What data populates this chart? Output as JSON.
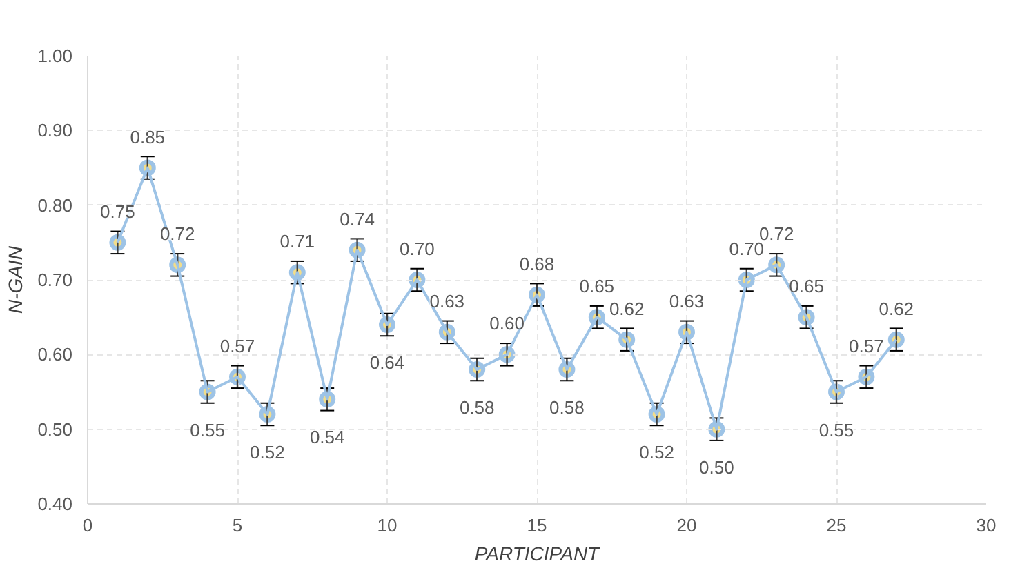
{
  "chart_data": {
    "type": "line",
    "xlabel": "PARTICIPANT",
    "ylabel": "N-GAIN",
    "x": [
      1,
      2,
      3,
      4,
      5,
      6,
      7,
      8,
      9,
      10,
      11,
      12,
      13,
      14,
      15,
      16,
      17,
      18,
      19,
      20,
      21,
      22,
      23,
      24,
      25,
      26,
      27
    ],
    "series": [
      {
        "color": "#9dc3e6",
        "values": [
          0.75,
          0.85,
          0.72,
          0.55,
          0.57,
          0.52,
          0.71,
          0.54,
          0.74,
          0.64,
          0.7,
          0.63,
          0.58,
          0.6,
          0.68,
          0.58,
          0.65,
          0.62,
          0.52,
          0.63,
          0.5,
          0.7,
          0.72,
          0.65,
          0.55,
          0.57,
          0.62
        ],
        "value_labels": [
          "0.75",
          "0.85",
          "0.72",
          "0.55",
          "0.57",
          "0.52",
          "0.71",
          "0.54",
          "0.74",
          "0.64",
          "0.70",
          "0.63",
          "0.58",
          "0.60",
          "0.68",
          "0.58",
          "0.65",
          "0.62",
          "0.52",
          "0.63",
          "0.50",
          "0.70",
          "0.72",
          "0.65",
          "0.55",
          "0.57",
          "0.62"
        ],
        "errors": [
          0.015,
          0.015,
          0.015,
          0.015,
          0.015,
          0.015,
          0.015,
          0.015,
          0.015,
          0.015,
          0.015,
          0.015,
          0.015,
          0.015,
          0.015,
          0.015,
          0.015,
          0.015,
          0.015,
          0.015,
          0.015,
          0.015,
          0.015,
          0.015,
          0.015,
          0.015,
          0.015
        ]
      }
    ],
    "xlim": [
      0,
      30
    ],
    "xticks": [
      0,
      5,
      10,
      15,
      20,
      25,
      30
    ],
    "ylim": [
      0.4,
      1.0
    ],
    "yticks": [
      {
        "value": 0.4,
        "label": "0.40"
      },
      {
        "value": 0.5,
        "label": "0.50"
      },
      {
        "value": 0.6,
        "label": "0.60"
      },
      {
        "value": 0.7,
        "label": "0.70"
      },
      {
        "value": 0.8,
        "label": "0.80"
      },
      {
        "value": 0.9,
        "label": "0.90"
      },
      {
        "value": 1.0,
        "label": "1.00"
      }
    ],
    "grid": true,
    "marker": "circle",
    "line_style": "solid"
  }
}
